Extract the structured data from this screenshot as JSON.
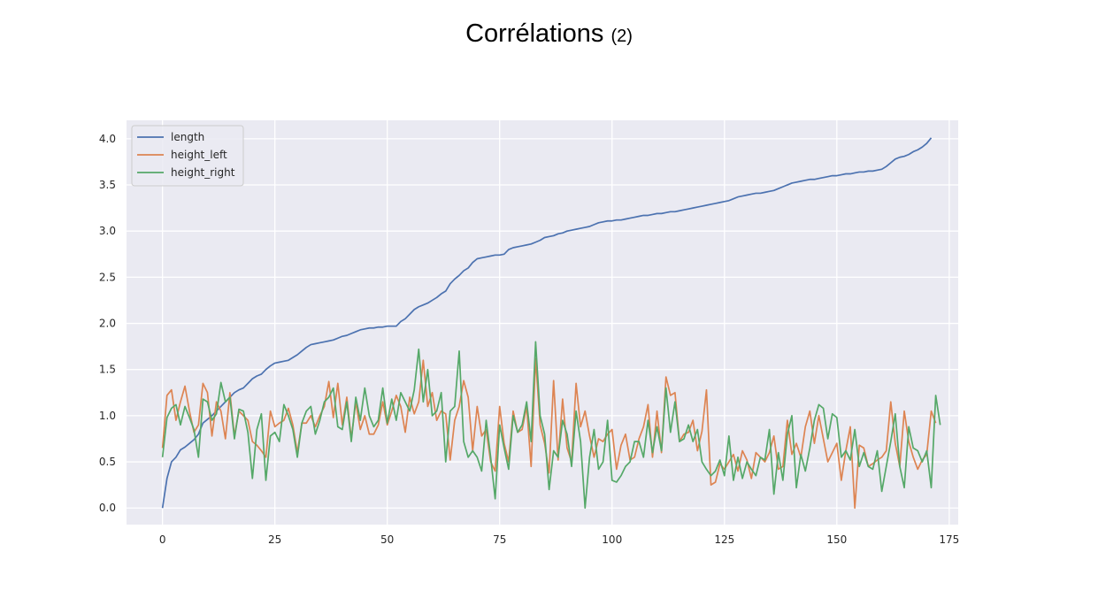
{
  "slide": {
    "title": "Corrélations",
    "title_suffix": "(2)"
  },
  "chart_data": {
    "type": "line",
    "title": "",
    "xlabel": "",
    "ylabel": "",
    "xlim": [
      -8,
      177
    ],
    "ylim": [
      -0.18,
      4.2
    ],
    "x_ticks": [
      0,
      25,
      50,
      75,
      100,
      125,
      150,
      175
    ],
    "y_ticks": [
      0.0,
      0.5,
      1.0,
      1.5,
      2.0,
      2.5,
      3.0,
      3.5,
      4.0
    ],
    "x_tick_labels": [
      "0",
      "25",
      "50",
      "75",
      "100",
      "125",
      "150",
      "175"
    ],
    "y_tick_labels": [
      "0.0",
      "0.5",
      "1.0",
      "1.5",
      "2.0",
      "2.5",
      "3.0",
      "3.5",
      "4.0"
    ],
    "grid": true,
    "legend_position": "top-left",
    "background": "#eaeaf2",
    "series": [
      {
        "name": "length",
        "color": "#4c72b0",
        "values": [
          0.0,
          0.32,
          0.5,
          0.55,
          0.63,
          0.66,
          0.7,
          0.74,
          0.8,
          0.92,
          0.96,
          1.0,
          1.05,
          1.1,
          1.15,
          1.2,
          1.25,
          1.28,
          1.3,
          1.35,
          1.4,
          1.43,
          1.45,
          1.5,
          1.54,
          1.57,
          1.58,
          1.59,
          1.6,
          1.63,
          1.66,
          1.7,
          1.74,
          1.77,
          1.78,
          1.79,
          1.8,
          1.81,
          1.82,
          1.84,
          1.86,
          1.87,
          1.89,
          1.91,
          1.93,
          1.94,
          1.95,
          1.95,
          1.96,
          1.96,
          1.97,
          1.97,
          1.97,
          2.02,
          2.05,
          2.1,
          2.15,
          2.18,
          2.2,
          2.22,
          2.25,
          2.28,
          2.32,
          2.35,
          2.43,
          2.48,
          2.52,
          2.57,
          2.6,
          2.66,
          2.7,
          2.71,
          2.72,
          2.73,
          2.74,
          2.74,
          2.75,
          2.8,
          2.82,
          2.83,
          2.84,
          2.85,
          2.86,
          2.88,
          2.9,
          2.93,
          2.94,
          2.95,
          2.97,
          2.98,
          3.0,
          3.01,
          3.02,
          3.03,
          3.04,
          3.05,
          3.07,
          3.09,
          3.1,
          3.11,
          3.11,
          3.12,
          3.12,
          3.13,
          3.14,
          3.15,
          3.16,
          3.17,
          3.17,
          3.18,
          3.19,
          3.19,
          3.2,
          3.21,
          3.21,
          3.22,
          3.23,
          3.24,
          3.25,
          3.26,
          3.27,
          3.28,
          3.29,
          3.3,
          3.31,
          3.32,
          3.33,
          3.35,
          3.37,
          3.38,
          3.39,
          3.4,
          3.41,
          3.41,
          3.42,
          3.43,
          3.44,
          3.46,
          3.48,
          3.5,
          3.52,
          3.53,
          3.54,
          3.55,
          3.56,
          3.56,
          3.57,
          3.58,
          3.59,
          3.6,
          3.6,
          3.61,
          3.62,
          3.62,
          3.63,
          3.64,
          3.64,
          3.65,
          3.65,
          3.66,
          3.67,
          3.7,
          3.74,
          3.78,
          3.8,
          3.81,
          3.83,
          3.86,
          3.88,
          3.91,
          3.95,
          4.01
        ]
      },
      {
        "name": "height_left",
        "color": "#dd8452",
        "values": [
          0.65,
          1.22,
          1.28,
          0.95,
          1.15,
          1.32,
          1.05,
          0.82,
          0.9,
          1.35,
          1.25,
          0.78,
          1.15,
          1.05,
          0.75,
          1.25,
          0.78,
          1.05,
          1.0,
          0.95,
          0.72,
          0.68,
          0.62,
          0.55,
          1.05,
          0.88,
          0.92,
          0.95,
          1.08,
          0.9,
          0.6,
          0.92,
          0.92,
          1.0,
          0.88,
          1.0,
          1.1,
          1.37,
          0.98,
          1.35,
          0.9,
          1.2,
          0.75,
          1.15,
          0.85,
          1.0,
          0.8,
          0.8,
          0.9,
          1.15,
          0.9,
          1.05,
          1.22,
          1.1,
          0.82,
          1.2,
          1.02,
          1.15,
          1.6,
          1.1,
          1.25,
          0.95,
          1.05,
          1.02,
          0.52,
          0.95,
          1.1,
          1.38,
          1.2,
          0.62,
          1.1,
          0.78,
          0.85,
          0.5,
          0.4,
          1.1,
          0.7,
          0.5,
          1.05,
          0.82,
          0.85,
          1.1,
          0.45,
          1.62,
          0.9,
          0.7,
          0.38,
          1.38,
          0.52,
          1.18,
          0.65,
          0.5,
          1.35,
          0.88,
          1.05,
          0.78,
          0.55,
          0.75,
          0.72,
          0.8,
          0.85,
          0.42,
          0.68,
          0.8,
          0.52,
          0.55,
          0.75,
          0.88,
          1.12,
          0.55,
          1.05,
          0.6,
          1.42,
          1.22,
          1.25,
          0.72,
          0.8,
          0.82,
          0.95,
          0.62,
          0.83,
          1.28,
          0.25,
          0.28,
          0.48,
          0.42,
          0.5,
          0.58,
          0.4,
          0.62,
          0.52,
          0.32,
          0.6,
          0.55,
          0.5,
          0.6,
          0.78,
          0.42,
          0.45,
          0.95,
          0.58,
          0.7,
          0.55,
          0.88,
          1.05,
          0.7,
          1.0,
          0.75,
          0.5,
          0.6,
          0.7,
          0.3,
          0.62,
          0.88,
          0.0,
          0.68,
          0.65,
          0.45,
          0.48,
          0.52,
          0.55,
          0.62,
          1.15,
          0.7,
          0.45,
          1.05,
          0.72,
          0.55,
          0.42,
          0.52,
          0.58,
          1.05,
          0.92
        ]
      },
      {
        "name": "height_right",
        "color": "#55a868",
        "values": [
          0.55,
          0.98,
          1.08,
          1.12,
          0.9,
          1.1,
          0.98,
          0.85,
          0.55,
          1.18,
          1.15,
          0.95,
          1.02,
          1.36,
          1.15,
          1.2,
          0.75,
          1.07,
          1.05,
          0.82,
          0.32,
          0.85,
          1.02,
          0.3,
          0.78,
          0.82,
          0.72,
          1.12,
          1.0,
          0.85,
          0.55,
          0.92,
          1.05,
          1.1,
          0.8,
          0.95,
          1.15,
          1.2,
          1.3,
          0.88,
          0.85,
          1.15,
          0.72,
          1.2,
          0.95,
          1.3,
          1.0,
          0.88,
          0.95,
          1.3,
          0.92,
          1.18,
          0.95,
          1.25,
          1.15,
          1.05,
          1.28,
          1.72,
          1.15,
          1.5,
          1.0,
          1.05,
          1.25,
          0.5,
          1.05,
          1.1,
          1.7,
          0.72,
          0.55,
          0.62,
          0.55,
          0.4,
          0.95,
          0.55,
          0.1,
          0.9,
          0.65,
          0.42,
          1.0,
          0.82,
          0.9,
          1.15,
          0.72,
          1.8,
          1.0,
          0.8,
          0.2,
          0.62,
          0.55,
          0.95,
          0.8,
          0.45,
          1.05,
          0.72,
          0.0,
          0.55,
          0.85,
          0.42,
          0.5,
          0.95,
          0.3,
          0.28,
          0.35,
          0.45,
          0.5,
          0.72,
          0.72,
          0.55,
          0.95,
          0.6,
          0.88,
          0.62,
          1.3,
          0.82,
          1.15,
          0.72,
          0.75,
          0.9,
          0.72,
          0.85,
          0.5,
          0.42,
          0.35,
          0.4,
          0.52,
          0.35,
          0.78,
          0.3,
          0.55,
          0.32,
          0.5,
          0.42,
          0.35,
          0.55,
          0.52,
          0.85,
          0.15,
          0.6,
          0.3,
          0.8,
          1.0,
          0.22,
          0.58,
          0.4,
          0.65,
          0.95,
          1.12,
          1.08,
          0.75,
          1.02,
          0.98,
          0.55,
          0.62,
          0.52,
          0.85,
          0.45,
          0.6,
          0.45,
          0.42,
          0.62,
          0.18,
          0.45,
          0.72,
          1.02,
          0.45,
          0.22,
          0.88,
          0.65,
          0.62,
          0.5,
          0.62,
          0.22,
          1.22,
          0.9
        ]
      }
    ]
  }
}
